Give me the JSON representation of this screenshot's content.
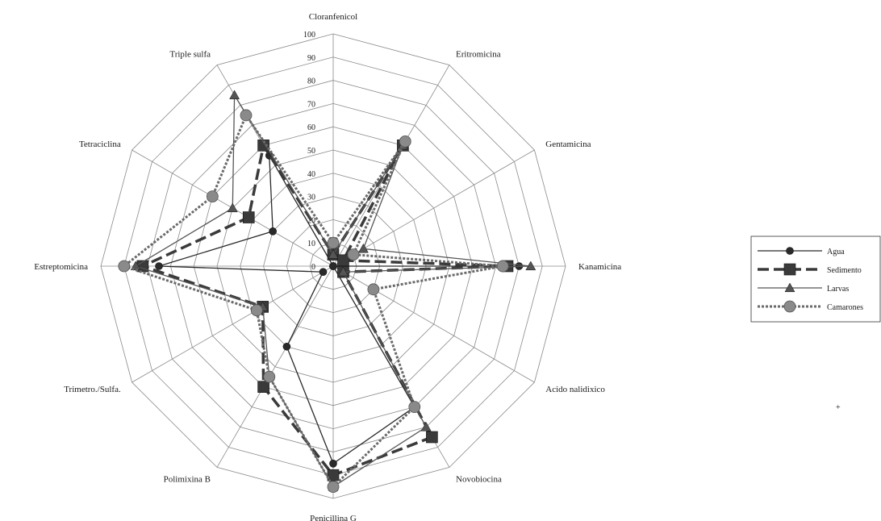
{
  "chart_data": {
    "type": "radar",
    "title": "",
    "categories": [
      "Cloranfenicol",
      "Eritromicina",
      "Gentamicina",
      "Kanamicina",
      "Acido nalidixico",
      "Novobiocina",
      "Penicillina G",
      "Polimixina B",
      "Trimetro./Sulfa.",
      "Estreptomicina",
      "Tetraciclina",
      "Triple sulfa"
    ],
    "ticks": [
      "0",
      "10",
      "20",
      "30",
      "40",
      "50",
      "60",
      "70",
      "80",
      "90",
      "100"
    ],
    "rlim": [
      0,
      100
    ],
    "grid": true,
    "legend_position": "right",
    "series": [
      {
        "name": "Agua",
        "color": "#2a2a2a",
        "marker": "circle",
        "dash": "solid",
        "values": [
          0,
          0,
          0,
          80,
          0,
          70,
          85,
          40,
          5,
          75,
          30,
          55
        ]
      },
      {
        "name": "Sedimento",
        "color": "#3a3a3a",
        "marker": "square",
        "dash": "dashed",
        "values": [
          5,
          60,
          5,
          75,
          5,
          85,
          90,
          60,
          35,
          82,
          42,
          60
        ]
      },
      {
        "name": "Larvas",
        "color": "#555555",
        "marker": "triangle",
        "dash": "solid",
        "values": [
          5,
          60,
          15,
          85,
          5,
          80,
          95,
          55,
          35,
          85,
          50,
          85
        ]
      },
      {
        "name": "Camarones",
        "color": "#6a6a6a",
        "marker": "circle-gray",
        "dash": "dotted",
        "values": [
          10,
          62,
          10,
          73,
          20,
          70,
          95,
          55,
          38,
          90,
          60,
          75
        ]
      }
    ]
  },
  "stray_mark": "+"
}
